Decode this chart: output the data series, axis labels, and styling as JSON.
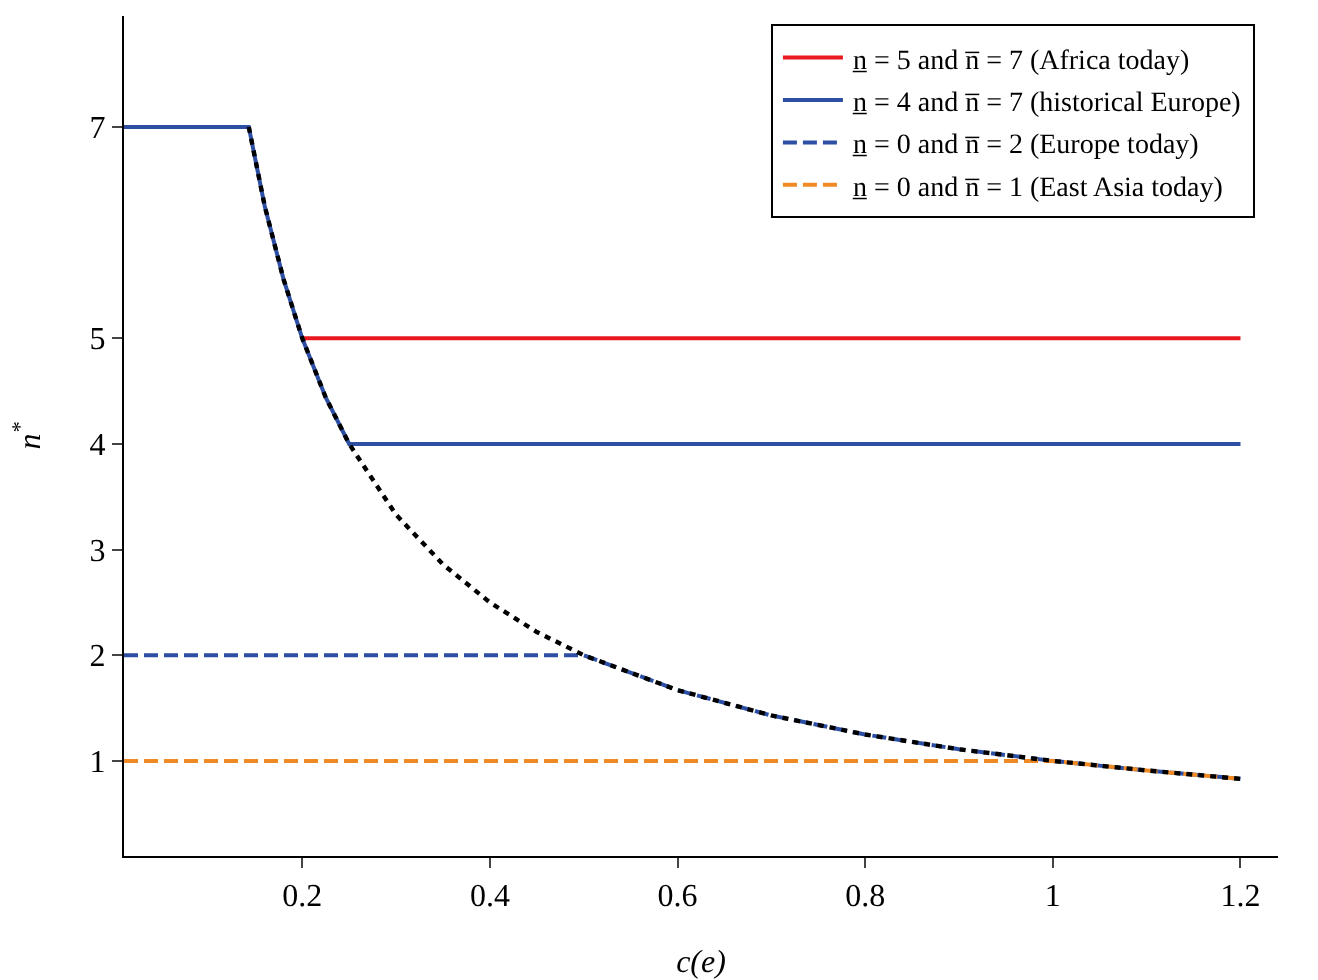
{
  "chart_data": {
    "type": "line",
    "xlabel": "c(e)",
    "ylabel": "n$^{*}$",
    "xlim": [
      0.01,
      1.24
    ],
    "ylim": [
      0.1,
      8.05
    ],
    "xticks": [
      0.2,
      0.4,
      0.6,
      0.8,
      1,
      1.2
    ],
    "yticks": [
      1,
      2,
      3,
      4,
      5,
      7
    ],
    "legend": "top right",
    "series": [
      {
        "name": "n̲ = 5 and n̅ = 7 (Africa today)",
        "color": "#e8191f",
        "line_style": "solid",
        "x": [
          0.2,
          1.2
        ],
        "values": [
          5,
          5
        ]
      },
      {
        "name": "n̲ = 4 and n̅ = 7 (historical Europe)",
        "color": "#2c4fa3",
        "line_style": "solid",
        "x": [
          0.01,
          0.143,
          0.16,
          0.18,
          0.2,
          0.225,
          0.25,
          1.2
        ],
        "values": [
          7,
          7,
          6.25,
          5.56,
          5,
          4.44,
          4,
          4
        ]
      },
      {
        "name": "n̲ = 0 and n̅ = 2 (Europe today)",
        "color": "#2c4fa3",
        "line_style": "dashed",
        "x": [
          0.01,
          0.5,
          0.6,
          0.7,
          0.8,
          0.9,
          1.0,
          1.1,
          1.2
        ],
        "values": [
          2,
          2,
          1.67,
          1.43,
          1.25,
          1.11,
          1,
          0.91,
          0.83
        ]
      },
      {
        "name": "n̲ = 0 and n̅ = 1 (East Asia today)",
        "color": "#f08a24",
        "line_style": "dashed",
        "x": [
          0.01,
          1.0,
          1.1,
          1.2
        ],
        "values": [
          1,
          1,
          0.91,
          0.83
        ]
      },
      {
        "color": "#000000",
        "line_style": "dotted",
        "x": [
          0.143,
          0.16,
          0.18,
          0.2,
          0.225,
          0.25,
          0.3,
          0.35,
          0.4,
          0.45,
          0.5,
          0.6,
          0.7,
          0.8,
          0.9,
          1.0,
          1.1,
          1.2
        ],
        "values": [
          7,
          6.25,
          5.56,
          5,
          4.44,
          4,
          3.33,
          2.86,
          2.5,
          2.22,
          2,
          1.67,
          1.43,
          1.25,
          1.11,
          1,
          0.91,
          0.83
        ]
      }
    ]
  }
}
